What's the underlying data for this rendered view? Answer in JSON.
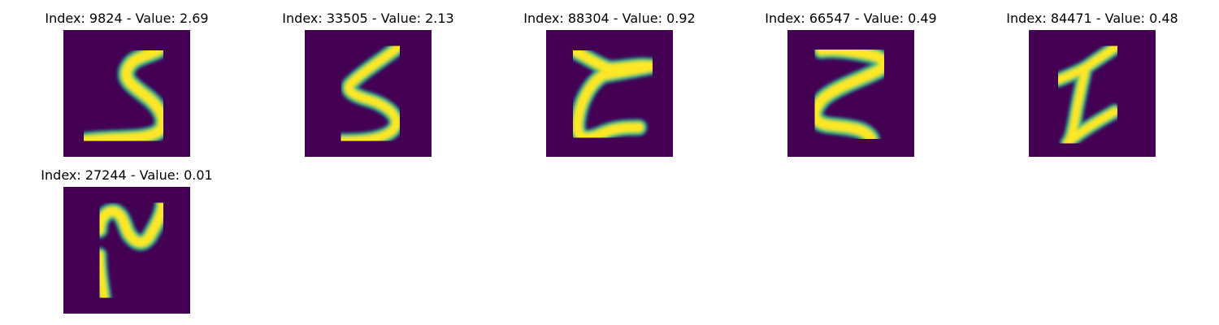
{
  "panels": [
    {
      "title": "Index: 9824 - Value: 2.69"
    },
    {
      "title": "Index: 33505 - Value: 2.13"
    },
    {
      "title": "Index: 88304 - Value: 0.92"
    },
    {
      "title": "Index: 66547 - Value: 0.49"
    },
    {
      "title": "Index: 84471 - Value: 0.48"
    },
    {
      "title": "Index: 27244 - Value: 0.01"
    }
  ],
  "colors": {
    "background": "#440154",
    "stroke_core": "#fde725",
    "stroke_mid": "#6ece58",
    "stroke_edge": "#21918c"
  }
}
